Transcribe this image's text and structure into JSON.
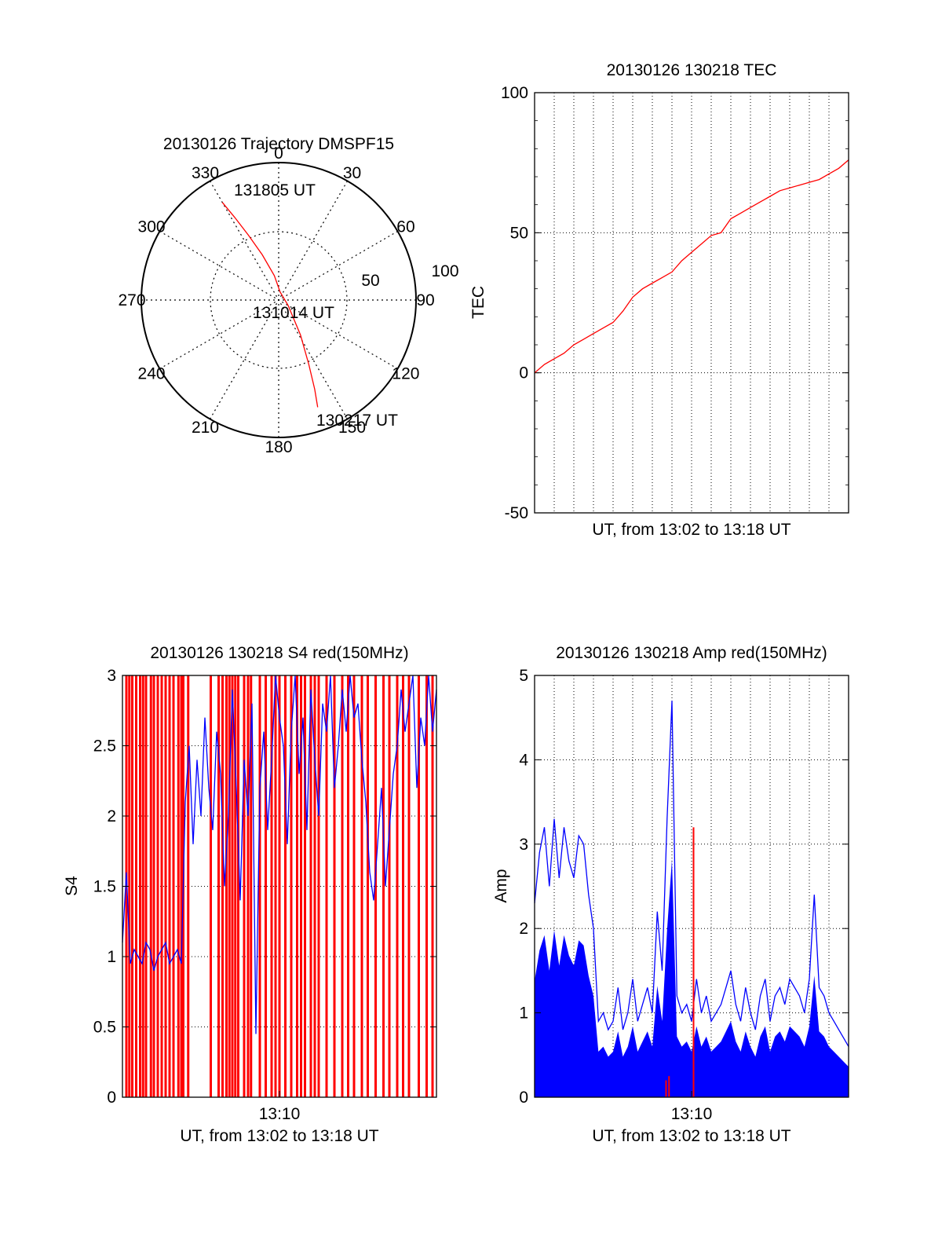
{
  "colors": {
    "axis": "#000000",
    "grid": "#000000",
    "red": "#ff0000",
    "blue": "#0000ff",
    "background": "#ffffff"
  },
  "chart_data": [
    {
      "id": "trajectory",
      "type": "polar",
      "title": "20130126 Trajectory DMSPF15",
      "angular_ticks": [
        "0",
        "30",
        "60",
        "90",
        "120",
        "150",
        "180",
        "210",
        "240",
        "270",
        "300",
        "330"
      ],
      "radial_ticks": [
        "50",
        "100"
      ],
      "radial_max": 100,
      "track": {
        "color": "#ff0000",
        "points": [
          [
            330,
            82
          ],
          [
            332,
            68
          ],
          [
            335,
            52
          ],
          [
            340,
            35
          ],
          [
            350,
            18
          ],
          [
            10,
            6
          ],
          [
            120,
            8
          ],
          [
            148,
            30
          ],
          [
            155,
            52
          ],
          [
            158,
            70
          ],
          [
            160,
            83
          ]
        ]
      },
      "annotations": [
        {
          "text": "131805 UT",
          "at": [
            330,
            82
          ]
        },
        {
          "text": "131014 UT",
          "at": [
            140,
            7
          ]
        },
        {
          "text": "130217 UT",
          "at": [
            160,
            83
          ]
        }
      ]
    },
    {
      "id": "tec",
      "type": "line",
      "title": "20130126 130218 TEC",
      "xlabel": "UT, from 13:02 to 13:18 UT",
      "ylabel": "TEC",
      "xlim": [
        0,
        16
      ],
      "ylim": [
        -50,
        100
      ],
      "yticks": [
        "-50",
        "0",
        "50",
        "100"
      ],
      "x_grid_lines": 17,
      "series": [
        {
          "color": "#ff0000",
          "x": [
            0,
            0.5,
            1,
            1.5,
            2,
            2.5,
            3,
            3.5,
            4,
            4.5,
            5,
            5.5,
            6,
            6.5,
            7,
            7.5,
            8,
            8.5,
            9,
            9.5,
            10,
            10.5,
            11,
            11.5,
            12,
            12.5,
            13,
            13.5,
            14,
            14.5,
            15,
            15.5,
            16
          ],
          "y": [
            0,
            3,
            5,
            7,
            10,
            12,
            14,
            16,
            18,
            22,
            27,
            30,
            32,
            34,
            36,
            40,
            43,
            46,
            49,
            50,
            55,
            57,
            59,
            61,
            63,
            65,
            66,
            67,
            68,
            69,
            71,
            73,
            76
          ]
        }
      ]
    },
    {
      "id": "s4",
      "type": "line",
      "title": "20130126 130218 S4 red(150MHz)",
      "xlabel": "UT, from 13:02 to 13:18 UT",
      "ylabel": "S4",
      "xlim": [
        0,
        16
      ],
      "ylim": [
        0,
        3
      ],
      "yticks": [
        "0",
        "0.5",
        "1",
        "1.5",
        "2",
        "2.5",
        "3"
      ],
      "xticks": [
        {
          "value": 8,
          "label": "13:10"
        }
      ],
      "series": [
        {
          "name": "",
          "color": "#ff0000",
          "style": "spikes",
          "x": [
            0.2,
            0.35,
            0.5,
            0.7,
            0.9,
            1.05,
            1.2,
            1.45,
            1.6,
            1.8,
            2.0,
            2.2,
            2.4,
            2.6,
            2.85,
            3.0,
            3.1,
            3.35,
            4.5,
            4.9,
            5.1,
            5.3,
            5.45,
            5.6,
            5.75,
            5.9,
            6.2,
            6.4,
            6.55,
            7.0,
            7.3,
            7.6,
            7.8,
            8.0,
            8.3,
            8.6,
            8.9,
            9.1,
            9.3,
            9.6,
            9.8,
            10.0,
            10.4,
            10.8,
            11.2,
            11.5,
            11.8,
            12.2,
            12.5,
            12.9,
            13.3,
            13.6,
            14.0,
            14.3,
            14.6,
            15.1,
            15.5,
            15.8
          ]
        },
        {
          "name": "",
          "color": "#0000ff",
          "x": [
            0,
            0.2,
            0.4,
            0.6,
            0.8,
            1.0,
            1.2,
            1.4,
            1.6,
            1.8,
            2.0,
            2.2,
            2.4,
            2.6,
            2.8,
            3.0,
            3.2,
            3.4,
            3.6,
            3.8,
            4.0,
            4.2,
            4.4,
            4.6,
            4.8,
            5.0,
            5.2,
            5.4,
            5.6,
            5.8,
            6.0,
            6.2,
            6.4,
            6.6,
            6.8,
            7.0,
            7.2,
            7.4,
            7.6,
            7.8,
            8.0,
            8.2,
            8.4,
            8.6,
            8.8,
            9.0,
            9.2,
            9.4,
            9.6,
            9.8,
            10.0,
            10.2,
            10.4,
            10.6,
            10.8,
            11.0,
            11.2,
            11.4,
            11.6,
            11.8,
            12.0,
            12.2,
            12.4,
            12.6,
            12.8,
            13.0,
            13.2,
            13.4,
            13.6,
            13.8,
            14.0,
            14.2,
            14.4,
            14.6,
            14.8,
            15.0,
            15.2,
            15.4,
            15.6,
            15.8,
            16.0
          ],
          "y": [
            1.1,
            1.6,
            0.95,
            1.05,
            1.0,
            0.95,
            1.1,
            1.05,
            0.9,
            1.0,
            1.05,
            1.1,
            0.95,
            1.0,
            1.05,
            0.95,
            2.1,
            2.5,
            1.8,
            2.4,
            2.0,
            2.7,
            2.2,
            1.9,
            2.6,
            2.3,
            1.5,
            2.0,
            2.9,
            2.2,
            1.4,
            2.4,
            2.0,
            2.8,
            0.45,
            2.2,
            2.6,
            1.9,
            2.4,
            3.0,
            2.7,
            2.5,
            1.8,
            2.6,
            3.0,
            2.3,
            2.7,
            1.9,
            2.9,
            2.4,
            2.0,
            2.8,
            2.6,
            3.0,
            2.2,
            2.5,
            2.9,
            2.6,
            3.0,
            2.7,
            2.8,
            2.4,
            2.1,
            1.6,
            1.4,
            1.8,
            2.2,
            1.5,
            1.9,
            2.3,
            2.5,
            2.9,
            2.6,
            2.8,
            3.0,
            2.2,
            2.7,
            2.5,
            3.0,
            2.6,
            2.9
          ]
        }
      ]
    },
    {
      "id": "amp",
      "type": "line",
      "title": "20130126 130218 Amp red(150MHz)",
      "xlabel": "UT, from 13:02 to 13:18 UT",
      "ylabel": "Amp",
      "xlim": [
        0,
        16
      ],
      "ylim": [
        0,
        5
      ],
      "yticks": [
        "0",
        "1",
        "2",
        "3",
        "4",
        "5"
      ],
      "xticks": [
        {
          "value": 8,
          "label": "13:10"
        }
      ],
      "series": [
        {
          "name": "",
          "color": "#0000ff",
          "x": [
            0,
            0.25,
            0.5,
            0.75,
            1.0,
            1.25,
            1.5,
            1.75,
            2.0,
            2.25,
            2.5,
            2.75,
            3.0,
            3.25,
            3.5,
            3.75,
            4.0,
            4.25,
            4.5,
            4.75,
            5.0,
            5.25,
            5.5,
            5.75,
            6.0,
            6.25,
            6.5,
            6.75,
            7.0,
            7.25,
            7.5,
            7.75,
            8.0,
            8.25,
            8.5,
            8.75,
            9.0,
            9.25,
            9.5,
            9.75,
            10.0,
            10.25,
            10.5,
            10.75,
            11.0,
            11.25,
            11.5,
            11.75,
            12.0,
            12.25,
            12.5,
            12.75,
            13.0,
            13.25,
            13.5,
            13.75,
            14.0,
            14.25,
            14.5,
            14.75,
            15.0,
            15.25,
            15.5,
            15.75,
            16.0
          ],
          "y": [
            2.3,
            2.9,
            3.2,
            2.5,
            3.3,
            2.6,
            3.2,
            2.8,
            2.6,
            3.1,
            3.0,
            2.4,
            2.0,
            0.9,
            1.0,
            0.8,
            0.9,
            1.3,
            0.8,
            1.0,
            1.4,
            0.9,
            1.1,
            1.3,
            1.0,
            2.2,
            1.5,
            3.3,
            4.7,
            1.2,
            1.0,
            1.1,
            0.9,
            1.4,
            1.0,
            1.2,
            0.9,
            1.0,
            1.1,
            1.3,
            1.5,
            1.1,
            0.9,
            1.3,
            1.0,
            0.8,
            1.2,
            1.4,
            0.9,
            1.2,
            1.3,
            1.1,
            1.4,
            1.3,
            1.2,
            1.0,
            1.4,
            2.4,
            1.3,
            1.2,
            1.0,
            0.9,
            0.8,
            0.7,
            0.6
          ]
        },
        {
          "name": "",
          "color": "#ff0000",
          "x": [
            6.7,
            6.85,
            8.1
          ],
          "y": [
            0.2,
            0.25,
            3.2
          ]
        }
      ]
    }
  ]
}
